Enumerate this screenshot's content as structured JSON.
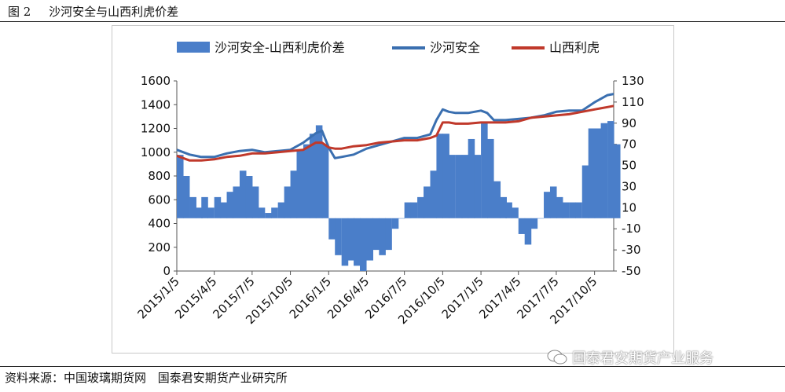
{
  "caption_top": {
    "figure_no": "图 2",
    "title": "沙河安全与山西利虎价差"
  },
  "caption_bottom": {
    "source": "资料来源：中国玻璃期货网",
    "org": "国泰君安期货产业研究所"
  },
  "watermark": {
    "text": "国泰君安期货产业服务",
    "icon": "wechat-icon"
  },
  "colors": {
    "diff": "#4A7EC9",
    "shahe": "#3A6FB0",
    "shanxi": "#C0392B",
    "axis": "#555555"
  },
  "chart_data": {
    "type": "bar+line",
    "legend": [
      "沙河安全-山西利虎价差",
      "沙河安全",
      "山西利虎"
    ],
    "legend_position": "top",
    "grid": false,
    "x_ticks": [
      "2015/1/5",
      "2015/4/5",
      "2015/7/5",
      "2015/10/5",
      "2016/1/5",
      "2016/4/5",
      "2016/7/5",
      "2016/10/5",
      "2017/1/5",
      "2017/4/5",
      "2017/7/5",
      "2017/10/5"
    ],
    "x_range": [
      "2015/1/5",
      "2017/11/20"
    ],
    "y_left": {
      "min": 0,
      "max": 1600,
      "ticks": [
        0,
        200,
        400,
        600,
        800,
        1000,
        1200,
        1400,
        1600
      ]
    },
    "y_right": {
      "min": -50,
      "max": 130,
      "ticks": [
        -50,
        -30,
        -10,
        10,
        30,
        50,
        70,
        90,
        110,
        130
      ]
    },
    "series": [
      {
        "name": "沙河安全-山西利虎价差",
        "axis": "right",
        "kind": "bar",
        "points": [
          [
            "2015/1/5",
            60
          ],
          [
            "2015/1/20",
            40
          ],
          [
            "2015/2/5",
            20
          ],
          [
            "2015/2/20",
            10
          ],
          [
            "2015/3/5",
            20
          ],
          [
            "2015/3/20",
            10
          ],
          [
            "2015/4/5",
            20
          ],
          [
            "2015/4/20",
            15
          ],
          [
            "2015/5/5",
            25
          ],
          [
            "2015/5/20",
            30
          ],
          [
            "2015/6/5",
            45
          ],
          [
            "2015/6/20",
            40
          ],
          [
            "2015/7/5",
            30
          ],
          [
            "2015/7/20",
            10
          ],
          [
            "2015/8/5",
            5
          ],
          [
            "2015/8/20",
            10
          ],
          [
            "2015/9/5",
            15
          ],
          [
            "2015/9/20",
            30
          ],
          [
            "2015/10/5",
            45
          ],
          [
            "2015/10/20",
            65
          ],
          [
            "2015/11/5",
            70
          ],
          [
            "2015/11/20",
            80
          ],
          [
            "2015/12/5",
            88
          ],
          [
            "2015/12/20",
            70
          ],
          [
            "2016/1/5",
            -20
          ],
          [
            "2016/1/20",
            -35
          ],
          [
            "2016/2/5",
            -45
          ],
          [
            "2016/2/20",
            -40
          ],
          [
            "2016/3/5",
            -45
          ],
          [
            "2016/3/20",
            -50
          ],
          [
            "2016/4/5",
            -40
          ],
          [
            "2016/4/20",
            -30
          ],
          [
            "2016/5/5",
            -35
          ],
          [
            "2016/5/20",
            -30
          ],
          [
            "2016/6/5",
            -10
          ],
          [
            "2016/6/20",
            0
          ],
          [
            "2016/7/5",
            15
          ],
          [
            "2016/7/20",
            15
          ],
          [
            "2016/8/5",
            20
          ],
          [
            "2016/8/20",
            30
          ],
          [
            "2016/9/5",
            45
          ],
          [
            "2016/9/20",
            80
          ],
          [
            "2016/10/5",
            80
          ],
          [
            "2016/10/20",
            60
          ],
          [
            "2016/11/5",
            60
          ],
          [
            "2016/11/20",
            60
          ],
          [
            "2016/12/5",
            75
          ],
          [
            "2016/12/20",
            60
          ],
          [
            "2017/1/5",
            90
          ],
          [
            "2017/1/20",
            75
          ],
          [
            "2017/2/5",
            35
          ],
          [
            "2017/2/20",
            20
          ],
          [
            "2017/3/5",
            15
          ],
          [
            "2017/3/20",
            10
          ],
          [
            "2017/4/5",
            -15
          ],
          [
            "2017/4/20",
            -25
          ],
          [
            "2017/5/5",
            -10
          ],
          [
            "2017/5/20",
            0
          ],
          [
            "2017/6/5",
            25
          ],
          [
            "2017/6/20",
            30
          ],
          [
            "2017/7/5",
            20
          ],
          [
            "2017/7/20",
            15
          ],
          [
            "2017/8/5",
            15
          ],
          [
            "2017/8/20",
            15
          ],
          [
            "2017/9/5",
            50
          ],
          [
            "2017/9/20",
            85
          ],
          [
            "2017/10/5",
            85
          ],
          [
            "2017/10/20",
            90
          ],
          [
            "2017/11/5",
            92
          ],
          [
            "2017/11/20",
            70
          ]
        ]
      },
      {
        "name": "沙河安全",
        "axis": "left",
        "kind": "line",
        "points": [
          [
            "2015/1/5",
            1020
          ],
          [
            "2015/2/5",
            980
          ],
          [
            "2015/3/5",
            960
          ],
          [
            "2015/4/5",
            960
          ],
          [
            "2015/5/5",
            990
          ],
          [
            "2015/6/5",
            1010
          ],
          [
            "2015/7/5",
            1020
          ],
          [
            "2015/8/5",
            1000
          ],
          [
            "2015/9/5",
            1010
          ],
          [
            "2015/10/5",
            1020
          ],
          [
            "2015/11/5",
            1080
          ],
          [
            "2015/12/5",
            1160
          ],
          [
            "2015/12/20",
            1180
          ],
          [
            "2016/1/5",
            1040
          ],
          [
            "2016/1/20",
            950
          ],
          [
            "2016/2/5",
            960
          ],
          [
            "2016/3/5",
            980
          ],
          [
            "2016/4/5",
            1030
          ],
          [
            "2016/5/5",
            1060
          ],
          [
            "2016/6/5",
            1090
          ],
          [
            "2016/7/5",
            1120
          ],
          [
            "2016/8/5",
            1120
          ],
          [
            "2016/9/5",
            1150
          ],
          [
            "2016/9/20",
            1270
          ],
          [
            "2016/10/5",
            1360
          ],
          [
            "2016/10/20",
            1340
          ],
          [
            "2016/11/5",
            1330
          ],
          [
            "2016/12/5",
            1330
          ],
          [
            "2017/1/5",
            1350
          ],
          [
            "2017/1/20",
            1330
          ],
          [
            "2017/2/5",
            1270
          ],
          [
            "2017/3/5",
            1270
          ],
          [
            "2017/4/5",
            1280
          ],
          [
            "2017/5/5",
            1290
          ],
          [
            "2017/6/5",
            1310
          ],
          [
            "2017/7/5",
            1340
          ],
          [
            "2017/8/5",
            1350
          ],
          [
            "2017/9/5",
            1350
          ],
          [
            "2017/10/5",
            1420
          ],
          [
            "2017/11/5",
            1480
          ],
          [
            "2017/11/20",
            1490
          ]
        ]
      },
      {
        "name": "山西利虎",
        "axis": "left",
        "kind": "line",
        "points": [
          [
            "2015/1/5",
            970
          ],
          [
            "2015/2/5",
            930
          ],
          [
            "2015/3/5",
            930
          ],
          [
            "2015/4/5",
            940
          ],
          [
            "2015/5/5",
            960
          ],
          [
            "2015/6/5",
            970
          ],
          [
            "2015/7/5",
            990
          ],
          [
            "2015/8/5",
            990
          ],
          [
            "2015/9/5",
            1000
          ],
          [
            "2015/10/5",
            1010
          ],
          [
            "2015/11/5",
            1020
          ],
          [
            "2015/12/5",
            1080
          ],
          [
            "2015/12/20",
            1080
          ],
          [
            "2016/1/5",
            1040
          ],
          [
            "2016/1/20",
            1030
          ],
          [
            "2016/2/5",
            1030
          ],
          [
            "2016/3/5",
            1050
          ],
          [
            "2016/4/5",
            1060
          ],
          [
            "2016/5/5",
            1080
          ],
          [
            "2016/6/5",
            1090
          ],
          [
            "2016/7/5",
            1100
          ],
          [
            "2016/8/5",
            1100
          ],
          [
            "2016/9/5",
            1120
          ],
          [
            "2016/9/20",
            1140
          ],
          [
            "2016/10/5",
            1250
          ],
          [
            "2016/10/20",
            1250
          ],
          [
            "2016/11/5",
            1240
          ],
          [
            "2016/12/5",
            1240
          ],
          [
            "2017/1/5",
            1250
          ],
          [
            "2017/2/5",
            1250
          ],
          [
            "2017/3/5",
            1250
          ],
          [
            "2017/4/5",
            1260
          ],
          [
            "2017/5/5",
            1290
          ],
          [
            "2017/6/5",
            1300
          ],
          [
            "2017/7/5",
            1310
          ],
          [
            "2017/8/5",
            1320
          ],
          [
            "2017/9/5",
            1340
          ],
          [
            "2017/10/5",
            1360
          ],
          [
            "2017/11/5",
            1380
          ],
          [
            "2017/11/20",
            1390
          ]
        ]
      }
    ]
  }
}
